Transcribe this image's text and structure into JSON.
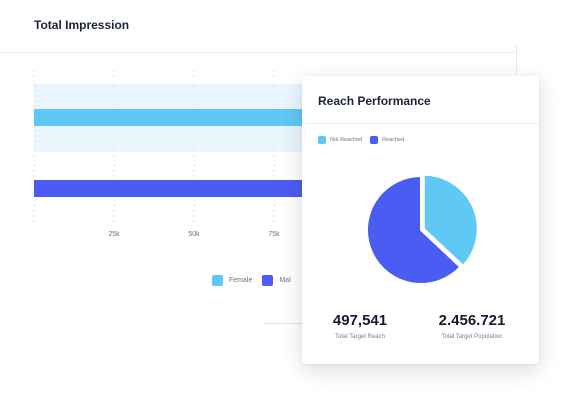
{
  "background_card": {
    "title": "Total Impression"
  },
  "legend": [
    {
      "label": "Female",
      "color": "#60c8f5"
    },
    {
      "label": "Mal",
      "color": "#4b5cf2"
    }
  ],
  "popup": {
    "title": "Reach Performance",
    "legend": [
      {
        "label": "Not Reached",
        "color": "#60c8f5"
      },
      {
        "label": "Reached",
        "color": "#4b5cf2"
      }
    ],
    "stats": [
      {
        "value": "497,541",
        "label": "Total Target Reach"
      },
      {
        "value": "2.456.721",
        "label": "Total Target Population"
      }
    ]
  },
  "chart_data": [
    {
      "type": "bar",
      "orientation": "horizontal",
      "title": "Total Impression",
      "x_ticks": [
        "25k",
        "50k",
        "75k"
      ],
      "xlim": [
        0,
        100000
      ],
      "grid": true,
      "series": [
        {
          "name": "Female",
          "color": "#60c8f5",
          "values": [
            100000
          ]
        },
        {
          "name": "Mal",
          "color": "#4b5cf2",
          "values": [
            100000
          ]
        }
      ],
      "note_visible": "bars extend behind the overlapping popup; ends not visible"
    },
    {
      "type": "pie",
      "title": "Reach Performance",
      "labels": [
        "Not Reached",
        "Reached"
      ],
      "values": [
        37,
        63
      ],
      "colors": [
        "#60c8f5",
        "#4b5cf2"
      ]
    }
  ]
}
